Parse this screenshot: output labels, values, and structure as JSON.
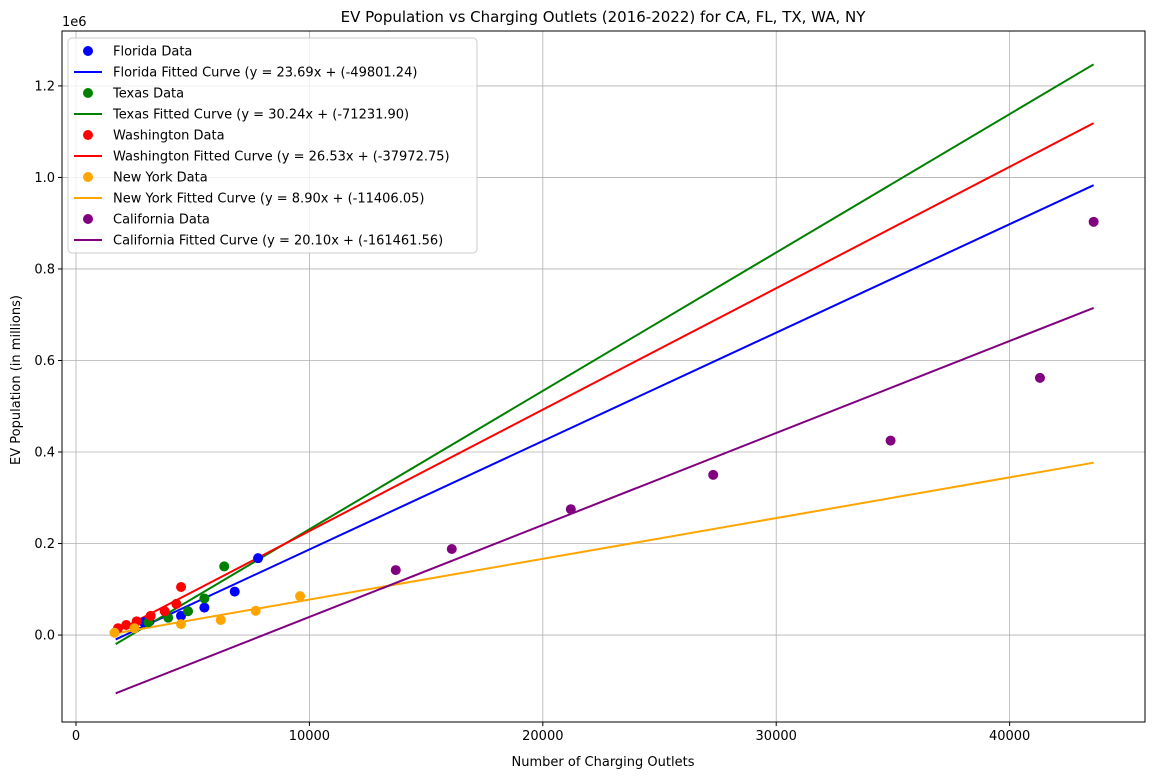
{
  "chart_data": {
    "type": "scatter",
    "title": "EV Population vs Charging Outlets (2016-2022) for CA, FL, TX, WA, NY",
    "xlabel": "Number of Charging Outlets",
    "ylabel": "EV Population (in millions)",
    "y_offset_label": "1e6",
    "xlim": [
      -600,
      45800
    ],
    "ylim": [
      -190000,
      1320000
    ],
    "x_ticks": [
      0,
      10000,
      20000,
      30000,
      40000
    ],
    "x_tick_labels": [
      "0",
      "10000",
      "20000",
      "30000",
      "40000"
    ],
    "y_ticks": [
      0,
      200000,
      400000,
      600000,
      800000,
      1000000,
      1200000
    ],
    "y_tick_labels": [
      "0.0",
      "0.2",
      "0.4",
      "0.6",
      "0.8",
      "1.0",
      "1.2"
    ],
    "grid": true,
    "legend_position": "upper-left",
    "fit_x_range": [
      1700,
      43600
    ],
    "series": [
      {
        "name": "Florida Data",
        "fit_name": "Florida Fitted Curve (y = 23.69x + (-49801.24)",
        "color": "#0000ff",
        "slope": 23.69,
        "intercept": -49801.24,
        "points": [
          [
            2900,
            28000
          ],
          [
            3150,
            30000
          ],
          [
            4500,
            42000
          ],
          [
            5500,
            60000
          ],
          [
            6800,
            95000
          ],
          [
            7800,
            168000
          ]
        ]
      },
      {
        "name": "Texas Data",
        "fit_name": "Texas Fitted Curve (y = 30.24x + (-71231.90)",
        "color": "#008000",
        "slope": 30.24,
        "intercept": -71231.9,
        "points": [
          [
            3100,
            28000
          ],
          [
            3950,
            38000
          ],
          [
            4800,
            52000
          ],
          [
            5500,
            80000
          ],
          [
            6350,
            150000
          ]
        ]
      },
      {
        "name": "Washington Data",
        "fit_name": "Washington Fitted Curve (y = 26.53x + (-37972.75)",
        "color": "#ff0000",
        "slope": 26.53,
        "intercept": -37972.75,
        "points": [
          [
            1800,
            15000
          ],
          [
            2150,
            22000
          ],
          [
            2600,
            30000
          ],
          [
            3200,
            42000
          ],
          [
            3800,
            52000
          ],
          [
            4300,
            68000
          ],
          [
            4500,
            105000
          ]
        ]
      },
      {
        "name": "New York Data",
        "fit_name": "New York Fitted Curve (y = 8.90x + (-11406.05)",
        "color": "#ffa500",
        "slope": 8.9,
        "intercept": -11406.05,
        "points": [
          [
            1650,
            5000
          ],
          [
            2500,
            15000
          ],
          [
            4500,
            24000
          ],
          [
            6200,
            33000
          ],
          [
            7700,
            53000
          ],
          [
            9600,
            85000
          ]
        ]
      },
      {
        "name": "California Data",
        "fit_name": "California Fitted Curve (y = 20.10x + (-161461.56)",
        "color": "#800080",
        "slope": 20.1,
        "intercept": -161461.56,
        "points": [
          [
            13700,
            142000
          ],
          [
            16100,
            188000
          ],
          [
            21200,
            275000
          ],
          [
            27300,
            350000
          ],
          [
            34900,
            425000
          ],
          [
            41300,
            562000
          ],
          [
            43600,
            903000
          ]
        ]
      }
    ]
  }
}
